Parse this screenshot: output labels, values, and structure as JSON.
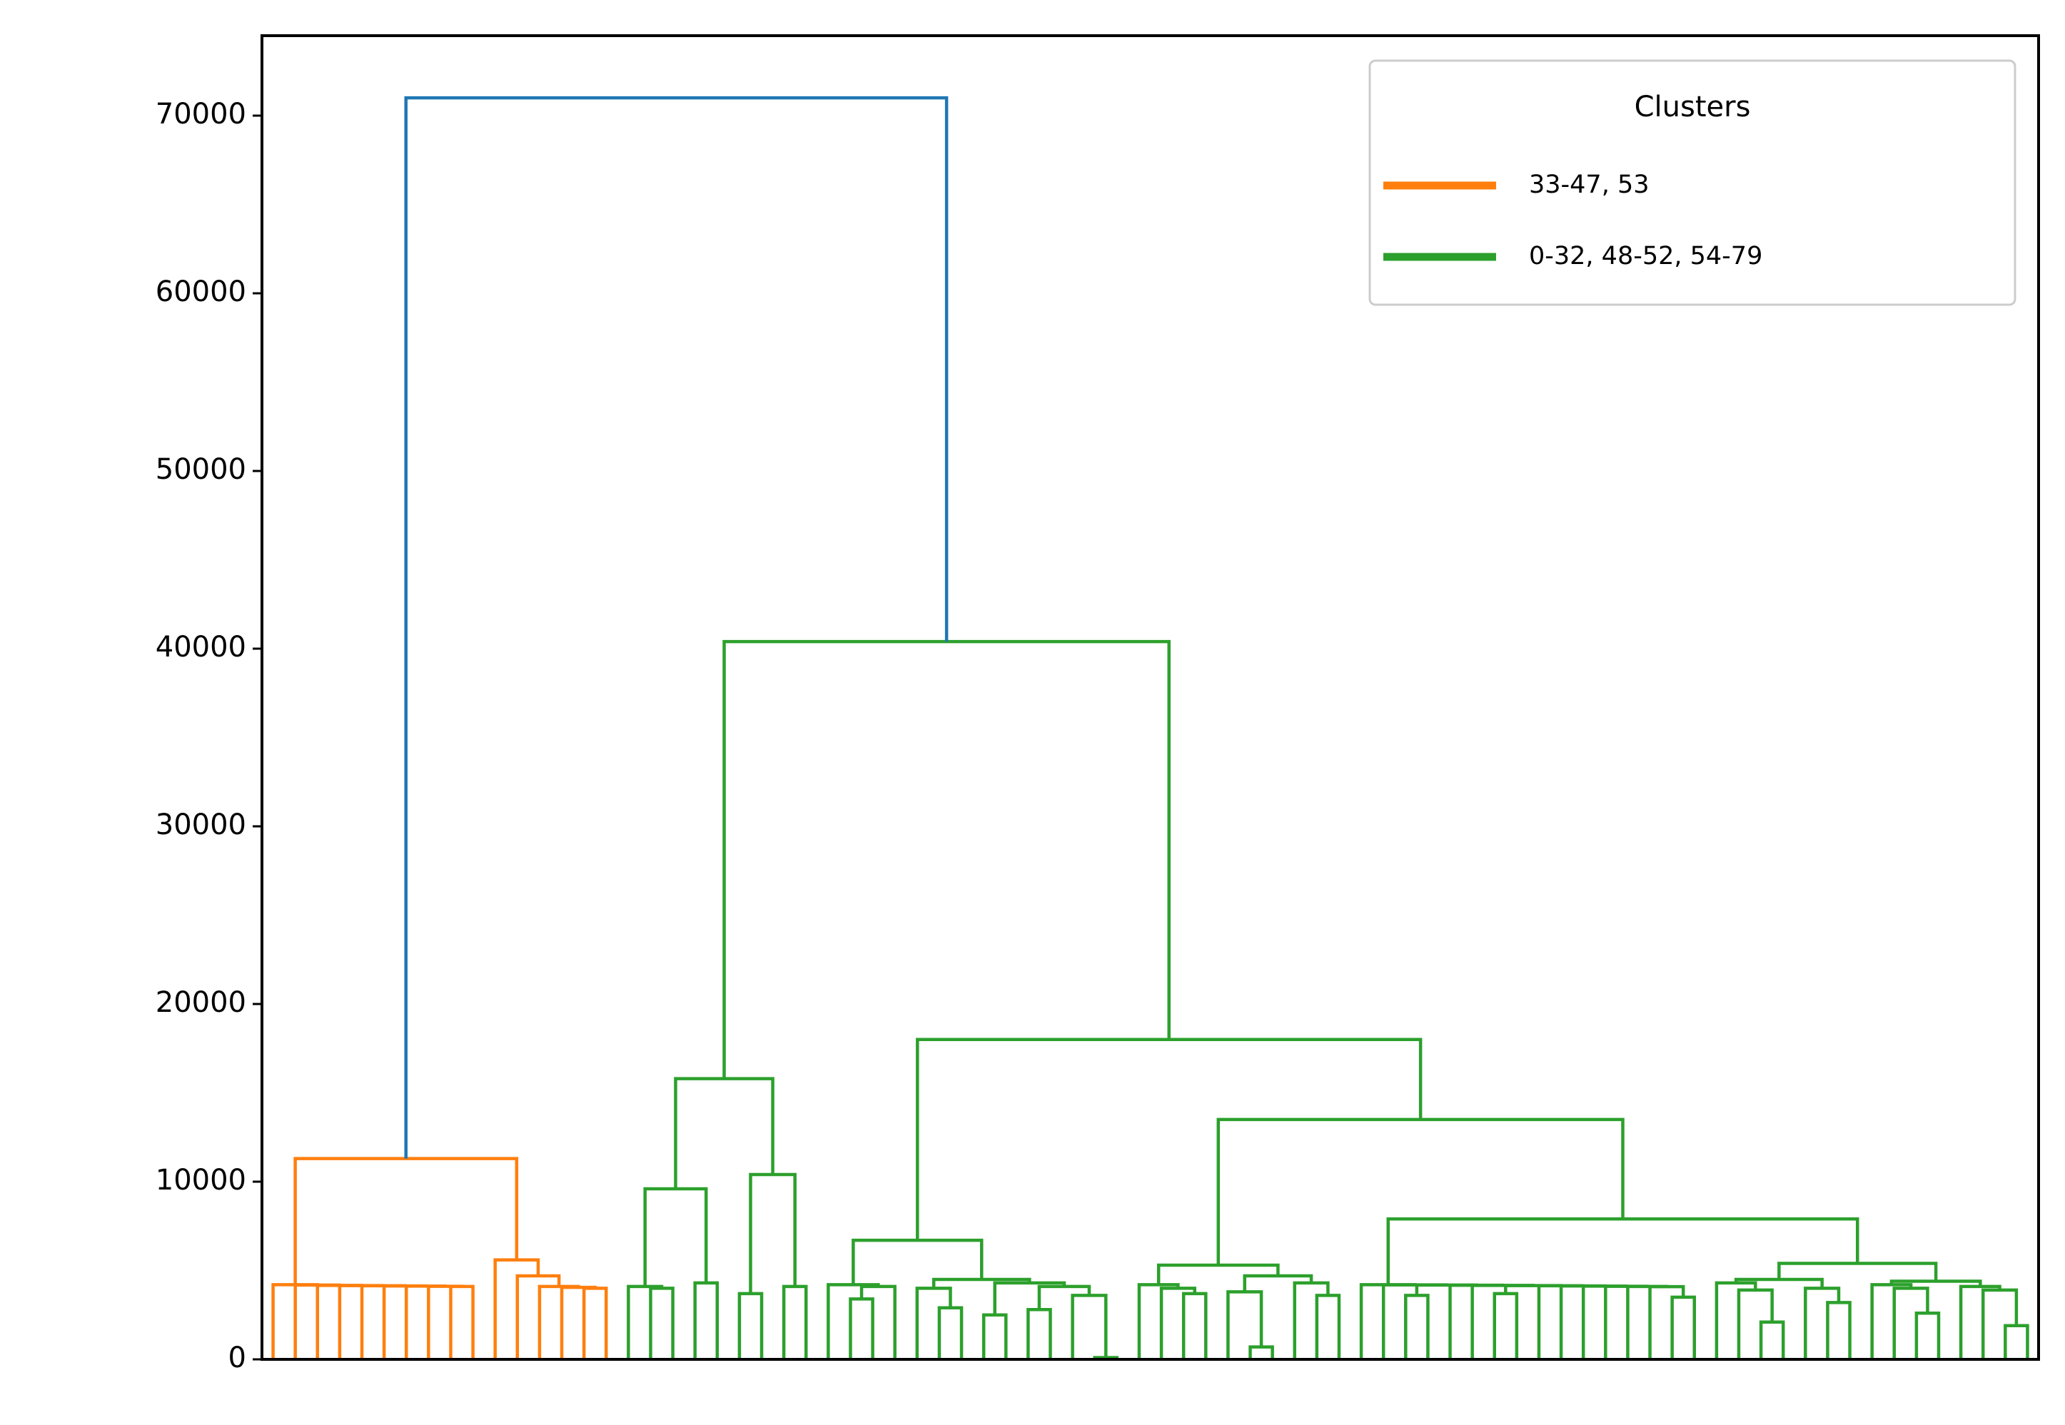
{
  "chart_data": {
    "type": "dendrogram",
    "ylim": [
      0,
      74500
    ],
    "yticks": [
      0,
      10000,
      20000,
      30000,
      40000,
      50000,
      60000,
      70000
    ],
    "root_height": 71000,
    "root_color": "#1f77b4",
    "legend_title": "Clusters",
    "legend_position": "upper right",
    "series": [
      {
        "name": "33-47, 53",
        "color": "#ff7f0e",
        "tree": [
          11300,
          [
            4200,
            0,
            [
              4180,
              0,
              [
                4160,
                0,
                [
                  4150,
                  0,
                  [
                    4140,
                    0,
                    [
                      4130,
                      0,
                      [
                        4120,
                        0,
                        [
                          4110,
                          0,
                          [
                            4100,
                            0,
                            0
                          ]
                        ]
                      ]
                    ]
                  ]
                ]
              ]
            ]
          ],
          [
            5600,
            0,
            [
              4700,
              0,
              [
                4100,
                0,
                [
                  4050,
                  0,
                  [
                    4000,
                    0,
                    0
                  ]
                ]
              ]
            ]
          ]
        ]
      },
      {
        "name": "0-32, 48-52, 54-79",
        "color": "#2ca02c",
        "tree": [
          40400,
          [
            15800,
            [
              9600,
              [
                4100,
                0,
                [
                  4000,
                  0,
                  0
                ]
              ],
              [
                4300,
                0,
                0
              ]
            ],
            [
              10400,
              [
                3700,
                0,
                0
              ],
              [
                4100,
                0,
                0
              ]
            ]
          ],
          [
            18000,
            [
              6700,
              [
                4200,
                0,
                [
                  4100,
                  [
                    3400,
                    0,
                    0
                  ],
                  0
                ]
              ],
              [
                4500,
                [
                  4000,
                  0,
                  [
                    2900,
                    0,
                    0
                  ]
                ],
                [
                  4300,
                  [
                    2500,
                    0,
                    0
                  ],
                  [
                    4100,
                    [
                      2800,
                      0,
                      0
                    ],
                    [
                      3600,
                      0,
                      [
                        100,
                        0,
                        0
                      ]
                    ]
                  ]
                ]
              ]
            ],
            [
              13500,
              [
                5300,
                [
                  4200,
                  0,
                  [
                    4000,
                    0,
                    [
                      3700,
                      0,
                      0
                    ]
                  ]
                ],
                [
                  4700,
                  [
                    3800,
                    0,
                    [
                      700,
                      0,
                      0
                    ]
                  ],
                  [
                    4300,
                    0,
                    [
                      3600,
                      0,
                      0
                    ]
                  ]
                ]
              ],
              [
                7900,
                [
                  4200,
                  0,
                  [
                    4190,
                    0,
                    [
                      4180,
                      [
                        3600,
                        0,
                        0
                      ],
                      [
                        4170,
                        0,
                        [
                          4160,
                          0,
                          [
                            4150,
                            [
                              3700,
                              0,
                              0
                            ],
                            [
                              4140,
                              0,
                              [
                                4130,
                                0,
                                [
                                  4120,
                                  0,
                                  [
                                    4110,
                                    0,
                                    [
                                      4100,
                                      0,
                                      [
                                        4090,
                                        0,
                                        [
                                          3500,
                                          0,
                                          0
                                        ]
                                      ]
                                    ]
                                  ]
                                ]
                              ]
                            ]
                          ]
                        ]
                      ]
                    ]
                  ]
                ],
                [
                  5400,
                  [
                    4500,
                    [
                      4300,
                      0,
                      [
                        3900,
                        0,
                        [
                          2100,
                          0,
                          0
                        ]
                      ]
                    ],
                    [
                      4000,
                      0,
                      [
                        3200,
                        0,
                        0
                      ]
                    ]
                  ],
                  [
                    4400,
                    [
                      4200,
                      0,
                      [
                        4000,
                        0,
                        [
                          2600,
                          0,
                          0
                        ]
                      ]
                    ],
                    [
                      4100,
                      0,
                      [
                        3900,
                        0,
                        [
                          1900,
                          0,
                          0
                        ]
                      ]
                    ]
                  ]
                ]
              ]
            ]
          ]
        ]
      }
    ]
  }
}
